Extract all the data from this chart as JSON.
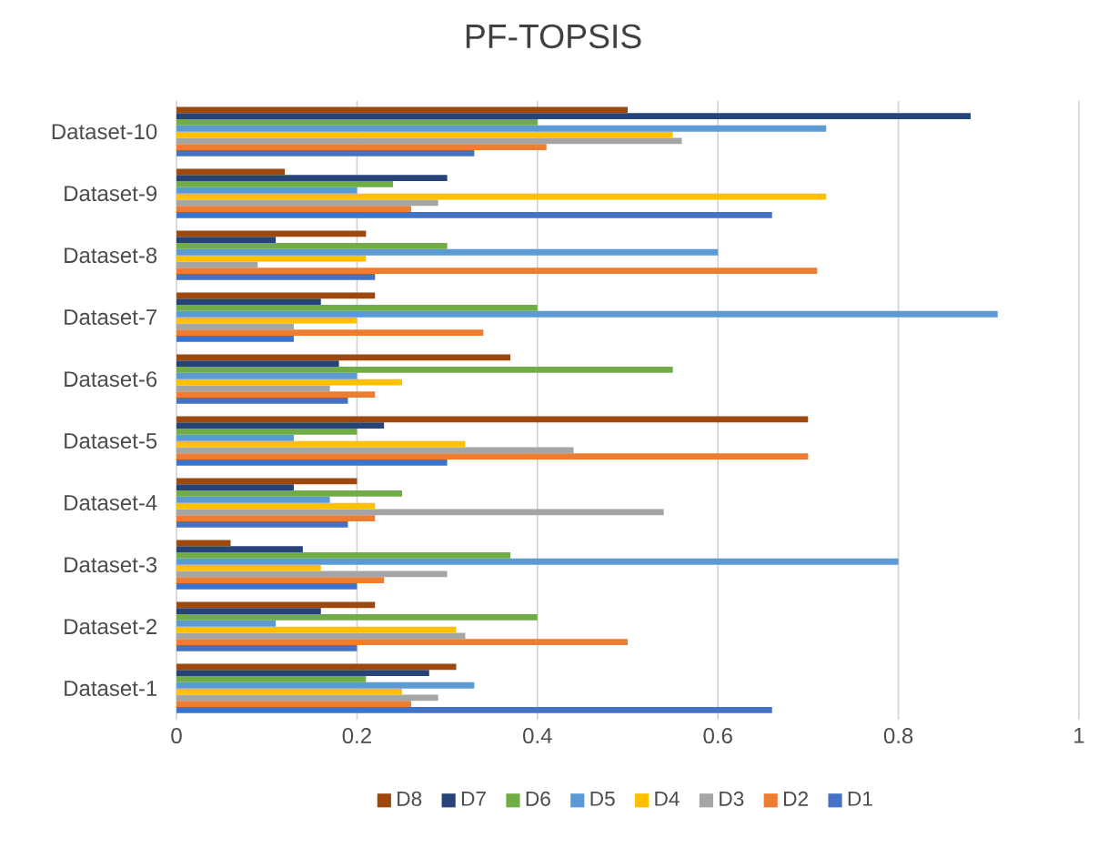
{
  "chart_data": {
    "type": "bar",
    "orientation": "horizontal",
    "title": "PF-TOPSIS",
    "categories": [
      "Dataset-10",
      "Dataset-9",
      "Dataset-8",
      "Dataset-7",
      "Dataset-6",
      "Dataset-5",
      "Dataset-4",
      "Dataset-3",
      "Dataset-2",
      "Dataset-1"
    ],
    "series": [
      {
        "name": "D1",
        "color": "#4472c4",
        "values": [
          0.33,
          0.66,
          0.22,
          0.13,
          0.19,
          0.3,
          0.19,
          0.2,
          0.2,
          0.66
        ]
      },
      {
        "name": "D2",
        "color": "#ed7d31",
        "values": [
          0.41,
          0.26,
          0.71,
          0.34,
          0.22,
          0.7,
          0.22,
          0.23,
          0.5,
          0.26
        ]
      },
      {
        "name": "D3",
        "color": "#a5a5a5",
        "values": [
          0.56,
          0.29,
          0.09,
          0.13,
          0.17,
          0.44,
          0.54,
          0.3,
          0.32,
          0.29
        ]
      },
      {
        "name": "D4",
        "color": "#ffc000",
        "values": [
          0.55,
          0.72,
          0.21,
          0.2,
          0.25,
          0.32,
          0.22,
          0.16,
          0.31,
          0.25
        ]
      },
      {
        "name": "D5",
        "color": "#5b9bd5",
        "values": [
          0.72,
          0.2,
          0.6,
          0.91,
          0.2,
          0.13,
          0.17,
          0.8,
          0.11,
          0.33
        ]
      },
      {
        "name": "D6",
        "color": "#70ad47",
        "values": [
          0.4,
          0.24,
          0.3,
          0.4,
          0.55,
          0.2,
          0.25,
          0.37,
          0.4,
          0.21
        ]
      },
      {
        "name": "D7",
        "color": "#264478",
        "values": [
          0.88,
          0.3,
          0.11,
          0.16,
          0.18,
          0.23,
          0.13,
          0.14,
          0.16,
          0.28
        ]
      },
      {
        "name": "D8",
        "color": "#9e480e",
        "values": [
          0.5,
          0.12,
          0.21,
          0.22,
          0.37,
          0.7,
          0.2,
          0.06,
          0.22,
          0.31
        ]
      }
    ],
    "xlim": [
      0,
      1
    ],
    "xticks": [
      0,
      0.2,
      0.4,
      0.6,
      0.8,
      1
    ],
    "grid": "x",
    "legend": "bottom"
  }
}
